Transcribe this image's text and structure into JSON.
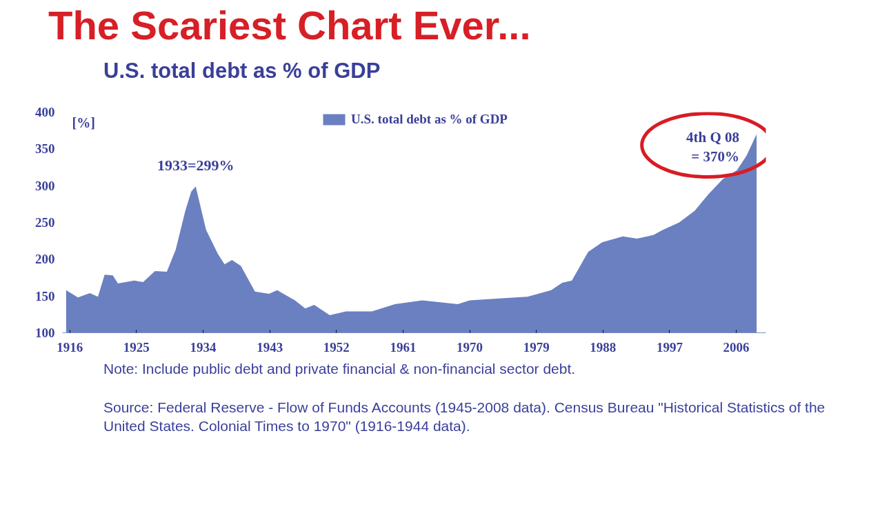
{
  "chart_data": {
    "type": "area",
    "title": "The Scariest Chart Ever...",
    "subtitle": "U.S. total debt as % of GDP",
    "ylabel": "[%]",
    "x": [
      1915.5,
      1917.1,
      1918.7,
      1919.8,
      1920.7,
      1921.8,
      1922.5,
      1924.7,
      1925.9,
      1927.5,
      1929.1,
      1930.3,
      1931.6,
      1932.4,
      1933,
      1934.4,
      1936.0,
      1936.9,
      1937.9,
      1939.1,
      1941.0,
      1942.9,
      1944.0,
      1946.4,
      1947.8,
      1949.0,
      1951.1,
      1953.3,
      1956.8,
      1959.9,
      1963.6,
      1968.4,
      1970.0,
      1974.7,
      1977.8,
      1981.0,
      1982.5,
      1983.8,
      1986.0,
      1987.9,
      1990.7,
      1992.6,
      1994.8,
      1996.1,
      1998.3,
      2000.4,
      2002.3,
      2004.2,
      2006.1,
      2007.4,
      2008.75
    ],
    "series": [
      {
        "name": "U.S. total debt as % of GDP",
        "color": "#6b80c0",
        "values": [
          158,
          148,
          154,
          149,
          179,
          178,
          167,
          171,
          169,
          184,
          183,
          213,
          266,
          292,
          299,
          240,
          207,
          193,
          199,
          191,
          156,
          153,
          158,
          144,
          133,
          138,
          124,
          129,
          129,
          139,
          144,
          139,
          144,
          147,
          149,
          158,
          168,
          171,
          210,
          223,
          231,
          228,
          233,
          240,
          250,
          266,
          289,
          309,
          321,
          341,
          370
        ]
      }
    ],
    "xlim": [
      1915,
      2010
    ],
    "xticks": [
      1916,
      1925,
      1934,
      1943,
      1952,
      1961,
      1970,
      1979,
      1988,
      1997,
      2006
    ],
    "ylim": [
      100,
      400
    ],
    "yticks": [
      100,
      150,
      200,
      250,
      300,
      350,
      400
    ],
    "legend": "top",
    "annotations": [
      {
        "text": "1933=299%",
        "x": 1933,
        "y": 299
      },
      {
        "text": "4th Q 08\n= 370%",
        "x": 2008.75,
        "y": 370
      },
      "Note: Include public debt and private financial & non-financial sector debt.",
      "Source: Federal Reserve - Flow of Funds Accounts (1945-2008 data).  Census Bureau  \"Historical Statistics of the United States. Colonial Times to 1970\" (1916-1944 data)."
    ]
  }
}
